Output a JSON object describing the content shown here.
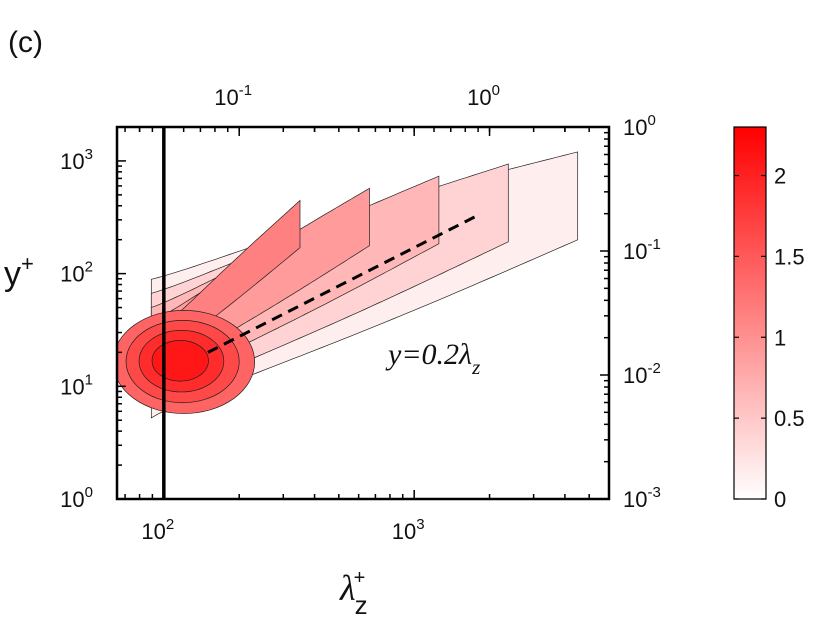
{
  "panel_label": "(c)",
  "chart_data": {
    "type": "contour",
    "title": "",
    "x_axis": {
      "label": "λ",
      "label_sub": "z",
      "label_sup": "+",
      "scale": "log",
      "range": [
        65,
        6000
      ],
      "ticks": [
        {
          "base": "10",
          "exp": "2",
          "value": 100
        },
        {
          "base": "10",
          "exp": "3",
          "value": 1000
        }
      ]
    },
    "y_axis": {
      "label": "y",
      "label_sup": "+",
      "scale": "log",
      "range": [
        1,
        2000
      ],
      "ticks": [
        {
          "base": "10",
          "exp": "0",
          "value": 1
        },
        {
          "base": "10",
          "exp": "1",
          "value": 10
        },
        {
          "base": "10",
          "exp": "2",
          "value": 100
        },
        {
          "base": "10",
          "exp": "3",
          "value": 1000
        }
      ]
    },
    "top_axis": {
      "scale": "log",
      "range": [
        0.0325,
        3.0
      ],
      "ticks": [
        {
          "base": "10",
          "exp": "-1",
          "value": 0.1
        },
        {
          "base": "10",
          "exp": "0",
          "value": 1
        }
      ]
    },
    "right_axis": {
      "scale": "log",
      "range": [
        0.001,
        1.0
      ],
      "ticks": [
        {
          "base": "10",
          "exp": "-3",
          "value": 0.001
        },
        {
          "base": "10",
          "exp": "-2",
          "value": 0.01
        },
        {
          "base": "10",
          "exp": "-1",
          "value": 0.1
        },
        {
          "base": "10",
          "exp": "0",
          "value": 1
        }
      ]
    },
    "vertical_line": {
      "x": 100
    },
    "peak": {
      "x": 115,
      "y": 17,
      "value": 2.3
    },
    "dashed_line": {
      "label": "y=0.2λ",
      "label_sub": "z",
      "x": [
        150,
        1800
      ],
      "y": [
        20,
        330
      ]
    },
    "contour_levels": [
      0.15,
      0.4,
      0.65,
      0.9,
      1.15,
      1.4,
      1.65,
      1.9,
      2.1
    ],
    "colorbar": {
      "range": [
        0,
        2.3
      ],
      "colors": [
        "#ffffff",
        "#ff0000"
      ],
      "ticks": [
        "0",
        "0.5",
        "1",
        "1.5",
        "2"
      ],
      "tick_values": [
        0,
        0.5,
        1,
        1.5,
        2
      ]
    }
  }
}
